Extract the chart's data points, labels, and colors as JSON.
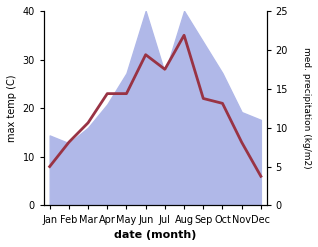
{
  "months": [
    "Jan",
    "Feb",
    "Mar",
    "Apr",
    "May",
    "Jun",
    "Jul",
    "Aug",
    "Sep",
    "Oct",
    "Nov",
    "Dec"
  ],
  "temp": [
    8,
    13,
    17,
    23,
    23,
    31,
    28,
    35,
    22,
    21,
    13,
    6
  ],
  "precip": [
    9,
    8,
    10,
    13,
    17,
    25,
    17,
    25,
    21,
    17,
    12,
    11
  ],
  "temp_color": "#993344",
  "precip_fill_color": "#b0b8e8",
  "title": "",
  "xlabel": "date (month)",
  "ylabel_left": "max temp (C)",
  "ylabel_right": "med. precipitation (kg/m2)",
  "ylim_left": [
    0,
    40
  ],
  "ylim_right": [
    0,
    25
  ],
  "yticks_left": [
    0,
    10,
    20,
    30,
    40
  ],
  "yticks_right": [
    0,
    5,
    10,
    15,
    20,
    25
  ],
  "bg_color": "#ffffff",
  "linewidth": 2.0
}
